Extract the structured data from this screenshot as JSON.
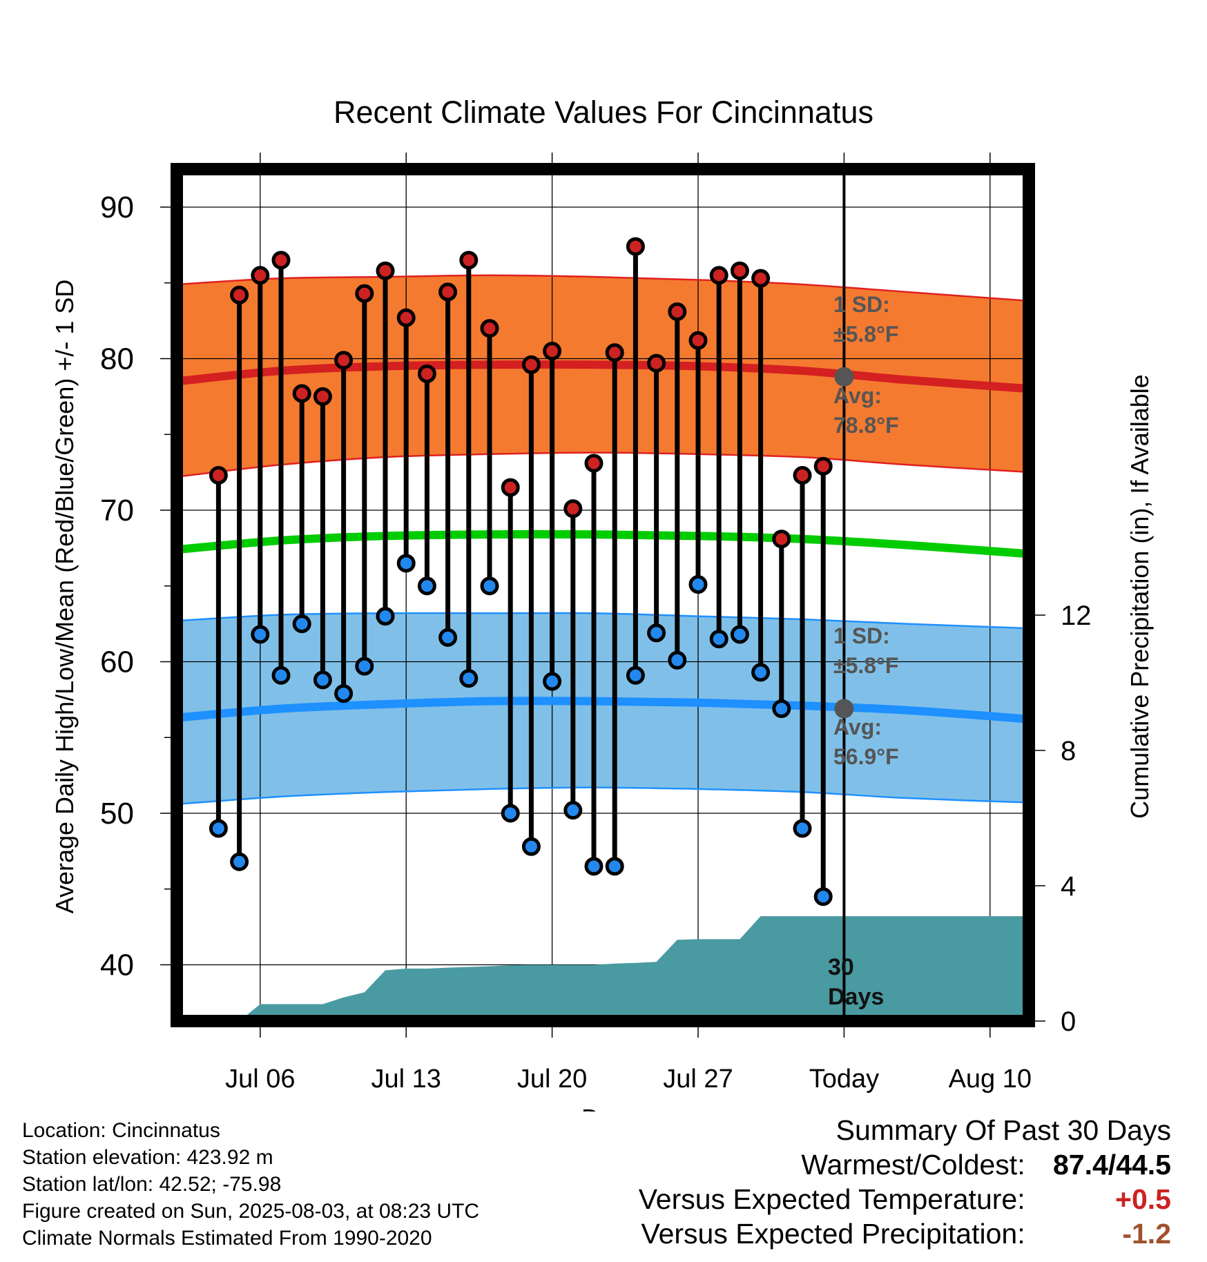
{
  "chart_data": {
    "type": "line",
    "title": "Recent Climate Values For Cincinnatus",
    "xlabel": "Day",
    "ylabel": "Average Daily High/Low/Mean (Red/Blue/Green) +/- 1 SD",
    "y2label": "Cumulative Precipitation (in), If Available",
    "ylim": [
      36.5,
      93.5
    ],
    "y2lim": [
      0,
      18
    ],
    "yticks": [
      40,
      50,
      60,
      70,
      80,
      90
    ],
    "y2ticks": [
      0,
      4,
      8,
      12
    ],
    "x_tick_labels": [
      "Jul 06",
      "Jul 13",
      "Jul 20",
      "Jul 27",
      "Today",
      "Aug 10"
    ],
    "x_range": [
      "Jul 02",
      "Aug 12"
    ],
    "today": "Aug 03",
    "days": [
      "Jul 04",
      "Jul 05",
      "Jul 06",
      "Jul 07",
      "Jul 08",
      "Jul 09",
      "Jul 10",
      "Jul 11",
      "Jul 12",
      "Jul 13",
      "Jul 14",
      "Jul 15",
      "Jul 16",
      "Jul 17",
      "Jul 18",
      "Jul 19",
      "Jul 20",
      "Jul 21",
      "Jul 22",
      "Jul 23",
      "Jul 24",
      "Jul 25",
      "Jul 26",
      "Jul 27",
      "Jul 28",
      "Jul 29",
      "Jul 30",
      "Jul 31",
      "Aug 01",
      "Aug 02"
    ],
    "series": [
      {
        "name": "Daily High",
        "color": "#cc2222",
        "values": [
          72.3,
          84.2,
          85.5,
          86.5,
          77.7,
          77.5,
          79.9,
          84.3,
          85.8,
          82.7,
          79.0,
          84.4,
          86.5,
          82.0,
          71.5,
          79.6,
          80.5,
          70.1,
          73.1,
          80.4,
          87.4,
          79.7,
          83.1,
          81.2,
          85.5,
          85.8,
          85.3,
          68.1,
          72.3,
          72.9
        ]
      },
      {
        "name": "Daily Low",
        "color": "#2288ee",
        "values": [
          49.0,
          46.8,
          61.8,
          59.1,
          62.5,
          58.8,
          57.9,
          59.7,
          63.0,
          66.5,
          65.0,
          61.6,
          58.9,
          65.0,
          50.0,
          47.8,
          58.7,
          50.2,
          46.5,
          46.5,
          59.1,
          61.9,
          60.1,
          65.1,
          61.5,
          61.8,
          59.3,
          56.9,
          49.0,
          44.5
        ]
      },
      {
        "name": "Normal High",
        "color": "#d42020",
        "values": [
          78.5,
          79.2,
          79.5,
          79.6,
          79.6,
          79.5,
          79.2,
          78.6,
          78.0
        ]
      },
      {
        "name": "Normal High +1 SD",
        "color": "#e02020",
        "values": [
          84.9,
          85.3,
          85.4,
          85.5,
          85.4,
          85.2,
          84.9,
          84.4,
          83.8
        ]
      },
      {
        "name": "Normal High -1 SD",
        "color": "#e02020",
        "values": [
          72.2,
          73.0,
          73.5,
          73.7,
          73.8,
          73.7,
          73.5,
          73.0,
          72.5
        ]
      },
      {
        "name": "Normal Mean",
        "color": "#00cc00",
        "values": [
          67.4,
          68.0,
          68.3,
          68.4,
          68.4,
          68.3,
          68.1,
          67.7,
          67.1
        ]
      },
      {
        "name": "Normal Low",
        "color": "#1e90ff",
        "values": [
          56.3,
          56.9,
          57.2,
          57.4,
          57.4,
          57.3,
          57.1,
          56.8,
          56.2
        ]
      },
      {
        "name": "Normal Low +1 SD",
        "color": "#1e90ff",
        "values": [
          62.7,
          63.1,
          63.2,
          63.2,
          63.2,
          63.0,
          62.8,
          62.5,
          62.2
        ]
      },
      {
        "name": "Normal Low -1 SD",
        "color": "#1e90ff",
        "values": [
          50.6,
          51.1,
          51.4,
          51.6,
          51.7,
          51.6,
          51.4,
          51.0,
          50.7
        ]
      }
    ],
    "normals_x": [
      "Jul 02",
      "Jul 07",
      "Jul 12",
      "Jul 17",
      "Jul 22",
      "Jul 27",
      "Aug 01",
      "Aug 06",
      "Aug 12"
    ],
    "precip_cumulative": [
      {
        "day": "Jul 05",
        "value": 0
      },
      {
        "day": "Jul 06",
        "value": 0.5
      },
      {
        "day": "Jul 07",
        "value": 0.5
      },
      {
        "day": "Jul 08",
        "value": 0.5
      },
      {
        "day": "Jul 09",
        "value": 0.5
      },
      {
        "day": "Jul 10",
        "value": 0.7
      },
      {
        "day": "Jul 11",
        "value": 0.85
      },
      {
        "day": "Jul 12",
        "value": 1.5
      },
      {
        "day": "Jul 13",
        "value": 1.55
      },
      {
        "day": "Jul 14",
        "value": 1.55
      },
      {
        "day": "Jul 15",
        "value": 1.58
      },
      {
        "day": "Jul 16",
        "value": 1.6
      },
      {
        "day": "Jul 17",
        "value": 1.62
      },
      {
        "day": "Jul 18",
        "value": 1.65
      },
      {
        "day": "Jul 19",
        "value": 1.66
      },
      {
        "day": "Jul 20",
        "value": 1.66
      },
      {
        "day": "Jul 21",
        "value": 1.66
      },
      {
        "day": "Jul 22",
        "value": 1.66
      },
      {
        "day": "Jul 23",
        "value": 1.7
      },
      {
        "day": "Jul 24",
        "value": 1.72
      },
      {
        "day": "Jul 25",
        "value": 1.75
      },
      {
        "day": "Jul 26",
        "value": 2.4
      },
      {
        "day": "Jul 27",
        "value": 2.42
      },
      {
        "day": "Jul 28",
        "value": 2.42
      },
      {
        "day": "Jul 29",
        "value": 2.42
      },
      {
        "day": "Jul 30",
        "value": 3.1
      },
      {
        "day": "Jul 31",
        "value": 3.1
      },
      {
        "day": "Aug 01",
        "value": 3.1
      },
      {
        "day": "Aug 02",
        "value": 3.1
      },
      {
        "day": "Aug 03",
        "value": 3.1
      },
      {
        "day": "Aug 12",
        "value": 3.1
      }
    ],
    "precip_color": "#4a9aa2",
    "sd_band_colors": {
      "high": "#f47a30",
      "low": "#80c0e8"
    },
    "annotations": {
      "high_sd_label": "1 SD:",
      "high_sd_value": "±5.8°F",
      "high_avg_label": "Avg:",
      "high_avg_value": "78.8°F",
      "high_avg": 78.8,
      "low_sd_label": "1 SD:",
      "low_sd_value": "±5.8°F",
      "low_avg_label": "Avg:",
      "low_avg_value": "56.9°F",
      "low_avg": 56.9,
      "days_label_1": "30",
      "days_label_2": "Days"
    }
  },
  "footer": {
    "location": "Location: Cincinnatus",
    "elevation": "Station elevation: 423.92 m",
    "latlon": "Station lat/lon: 42.52; -75.98",
    "created": "Figure created on Sun, 2025-08-03, at 08:23 UTC",
    "normals": "Climate Normals Estimated From 1990-2020"
  },
  "summary": {
    "title": "Summary Of Past 30 Days",
    "warmest_coldest_label": "Warmest/Coldest:",
    "warmest_coldest_value": "87.4/44.5",
    "temp_label": "Versus Expected Temperature:",
    "temp_value": "+0.5",
    "temp_color": "#cc2222",
    "precip_label": "Versus Expected Precipitation:",
    "precip_value": "-1.2",
    "precip_color": "#a0522d"
  }
}
